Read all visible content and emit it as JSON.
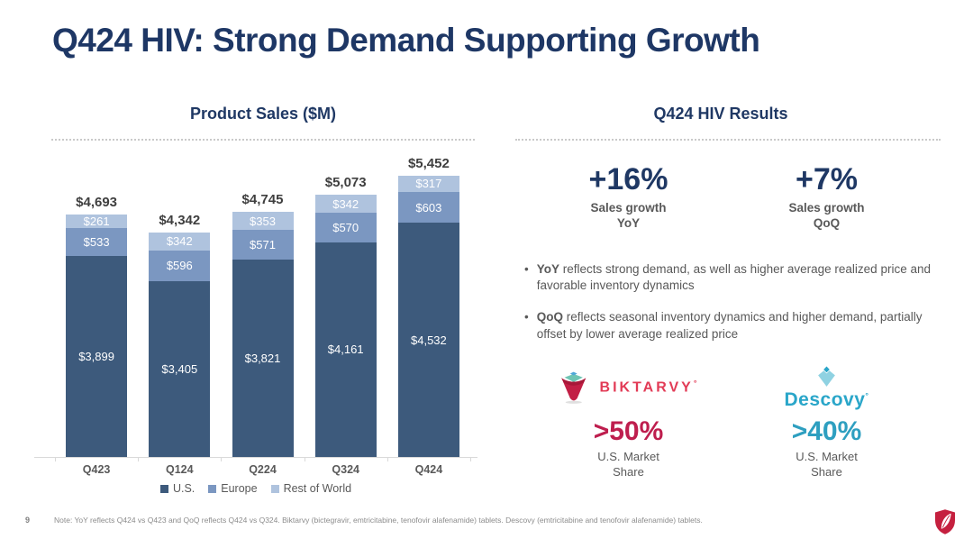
{
  "slide": {
    "title": "Q424 HIV: Strong Demand Supporting Growth",
    "page_number": "9",
    "footnote": "Note: YoY reflects Q424 vs Q423 and QoQ reflects Q424 vs Q324. Biktarvy (bictegravir, emtricitabine, tenofovir alafenamide) tablets. Descovy (emtricitabine and tenofovir alafenamide) tablets."
  },
  "chart_data": {
    "type": "bar",
    "stacked": true,
    "title": "Product Sales ($M)",
    "categories": [
      "Q423",
      "Q124",
      "Q224",
      "Q324",
      "Q424"
    ],
    "series": [
      {
        "name": "U.S.",
        "color": "#3D5A7C",
        "values": [
          3899,
          3405,
          3821,
          4161,
          4532
        ],
        "labels": [
          "$3,899",
          "$3,405",
          "$3,821",
          "$4,161",
          "$4,532"
        ]
      },
      {
        "name": "Europe",
        "color": "#7B97C1",
        "values": [
          533,
          596,
          571,
          570,
          603
        ],
        "labels": [
          "$533",
          "$596",
          "$571",
          "$570",
          "$603"
        ]
      },
      {
        "name": "Rest of World",
        "color": "#AFC3DE",
        "values": [
          261,
          342,
          353,
          342,
          317
        ],
        "labels": [
          "$261",
          "$342",
          "$353",
          "$342",
          "$317"
        ]
      }
    ],
    "totals": [
      4693,
      4342,
      4745,
      5073,
      5452
    ],
    "total_labels": [
      "$4,693",
      "$4,342",
      "$4,745",
      "$5,073",
      "$5,452"
    ],
    "xlabel": "",
    "ylabel": "",
    "ylim": [
      0,
      6000
    ],
    "grid": false,
    "legend_position": "bottom"
  },
  "results": {
    "title": "Q424 HIV Results",
    "metrics": [
      {
        "value": "+16%",
        "caption_line1": "Sales growth",
        "caption_line2": "YoY"
      },
      {
        "value": "+7%",
        "caption_line1": "Sales growth",
        "caption_line2": "QoQ"
      }
    ],
    "bullets": [
      {
        "lead": "YoY",
        "text": " reflects strong demand, as well as higher average realized price and favorable inventory dynamics"
      },
      {
        "lead": "QoQ",
        "text": " reflects seasonal inventory dynamics and higher demand, partially offset by lower average realized price"
      }
    ],
    "brands": [
      {
        "wordmark": "BIKTARVY",
        "mark": "°",
        "share_value": ">50%",
        "caption_line1": "U.S. Market",
        "caption_line2": "Share",
        "wordmark_color": "#E23B56",
        "share_color": "#BE1E4E"
      },
      {
        "wordmark": "Descovy",
        "mark": "°",
        "share_value": ">40%",
        "caption_line1": "U.S. Market",
        "caption_line2": "Share",
        "wordmark_color": "#2AA6C9",
        "share_color": "#2E9FC0"
      }
    ]
  },
  "colors": {
    "title_navy": "#1E3765",
    "header_navy": "#1F3864",
    "body_gray": "#595959",
    "axis_gray": "#D9D9D9",
    "footnote_gray": "#8C8C8C",
    "gilead_red": "#C5203F"
  }
}
